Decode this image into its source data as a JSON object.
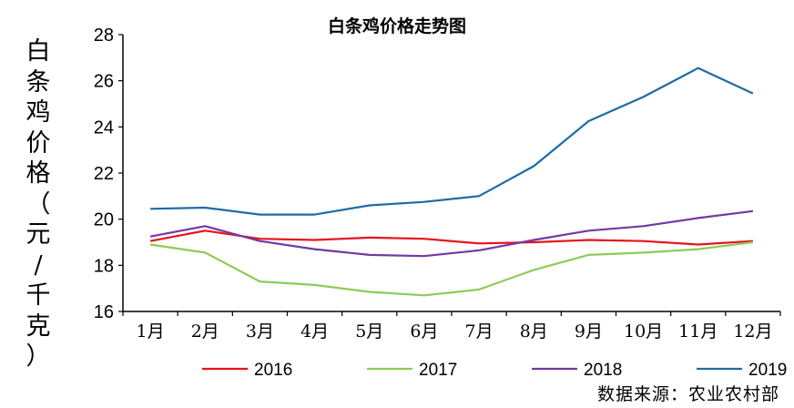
{
  "chart_data": {
    "type": "line",
    "title": "白条鸡价格走势图",
    "ylabel": "白条鸡价格（元/千克）",
    "xlabel": "",
    "categories": [
      "1月",
      "2月",
      "3月",
      "4月",
      "5月",
      "6月",
      "7月",
      "8月",
      "9月",
      "10月",
      "11月",
      "12月"
    ],
    "ylim": [
      16,
      28
    ],
    "yticks": [
      "16",
      "18",
      "20",
      "22",
      "24",
      "26",
      "28"
    ],
    "grid": false,
    "legend": "bottom",
    "series": [
      {
        "name": "2016",
        "color": "#e8111c",
        "values": [
          19.05,
          19.5,
          19.15,
          19.1,
          19.2,
          19.15,
          18.95,
          19.0,
          19.1,
          19.05,
          18.9,
          19.05
        ]
      },
      {
        "name": "2017",
        "color": "#8ccc55",
        "values": [
          18.9,
          18.55,
          17.3,
          17.15,
          16.85,
          16.7,
          16.95,
          17.8,
          18.45,
          18.55,
          18.7,
          19.0
        ]
      },
      {
        "name": "2018",
        "color": "#7438a4",
        "values": [
          19.25,
          19.7,
          19.05,
          18.7,
          18.45,
          18.4,
          18.65,
          19.1,
          19.5,
          19.7,
          20.05,
          20.35
        ]
      },
      {
        "name": "2019",
        "color": "#1f6ba5",
        "values": [
          20.45,
          20.5,
          20.2,
          20.2,
          20.6,
          20.75,
          21.0,
          22.3,
          24.25,
          25.3,
          26.55,
          25.45
        ]
      }
    ]
  },
  "source": "数据来源：农业农村部"
}
